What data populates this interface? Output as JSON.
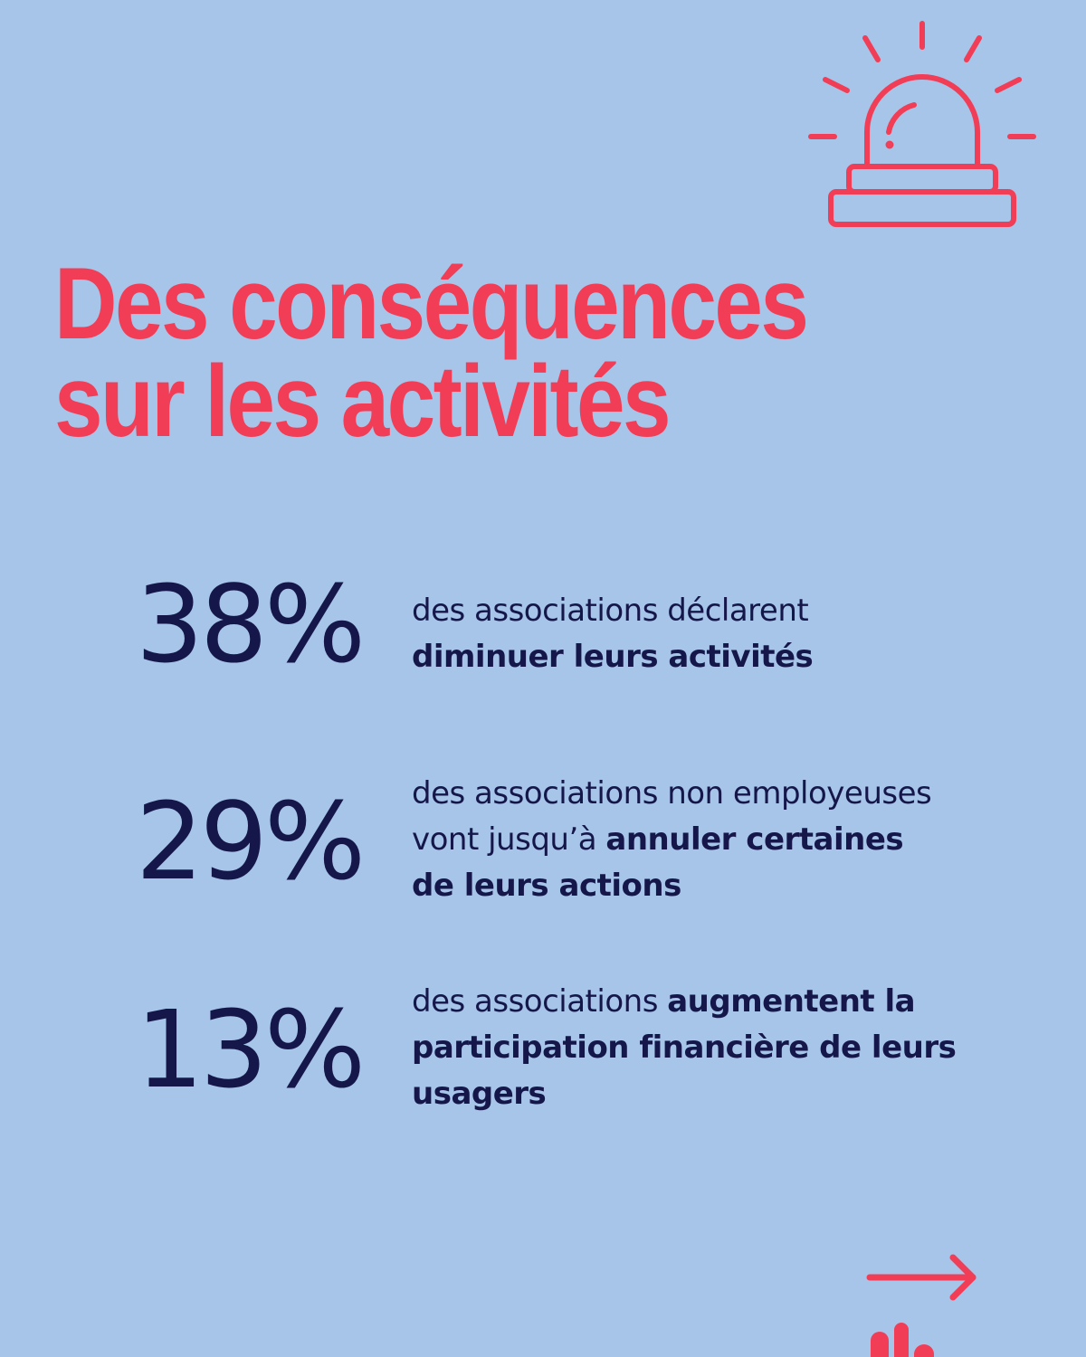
{
  "title": {
    "line1": "Des conséquences",
    "line2": "sur les activités"
  },
  "stats": [
    {
      "value": "38%",
      "line1_plain": "des associations déclarent",
      "line2_bold": "diminuer leurs activités"
    },
    {
      "value": "29%",
      "line1_plain": "des associations non employeuses",
      "line2_plain": "vont jusqu’à ",
      "line2_bold": "annuler certaines",
      "line3_bold": "de leurs actions"
    },
    {
      "value": "13%",
      "line1_plain": "des associations ",
      "line1_bold": "augmentent la",
      "line2_bold": "participation financière de leurs",
      "line3_bold": "usagers"
    }
  ],
  "icons": {
    "header": "alarm-siren-icon",
    "next": "arrow-right-icon",
    "logo": "brand-logo-icon"
  },
  "colors": {
    "background": "#A7C5E8",
    "accent": "#F23D57",
    "text": "#15174A"
  }
}
